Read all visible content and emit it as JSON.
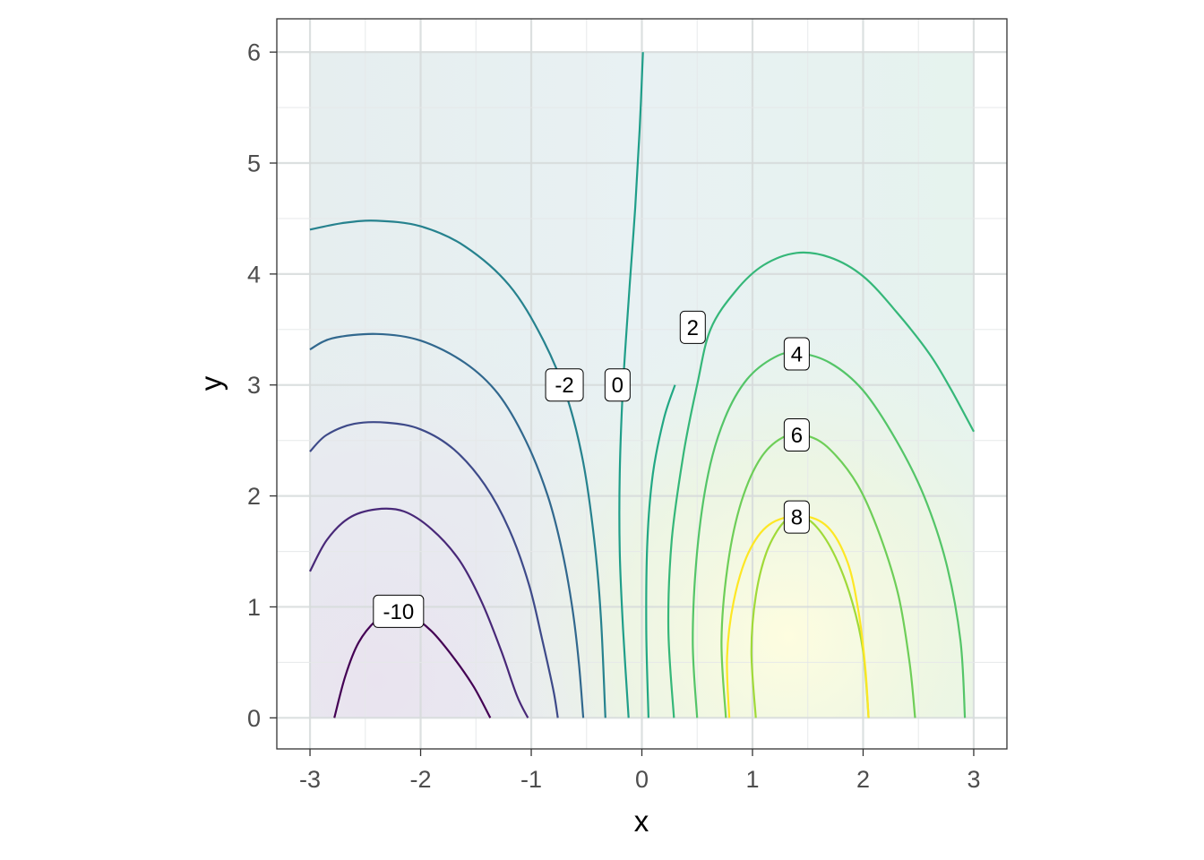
{
  "chart_data": {
    "type": "contour",
    "xlabel": "x",
    "ylabel": "y",
    "xlim": [
      -3.3,
      3.3
    ],
    "ylim": [
      -0.28,
      6.3
    ],
    "x_ticks": [
      {
        "value": -3,
        "label": "-3"
      },
      {
        "value": -2,
        "label": "-2"
      },
      {
        "value": -1,
        "label": "-1"
      },
      {
        "value": 0,
        "label": "0"
      },
      {
        "value": 1,
        "label": "1"
      },
      {
        "value": 2,
        "label": "2"
      },
      {
        "value": 3,
        "label": "3"
      }
    ],
    "y_ticks": [
      {
        "value": 0,
        "label": "0"
      },
      {
        "value": 1,
        "label": "1"
      },
      {
        "value": 2,
        "label": "2"
      },
      {
        "value": 3,
        "label": "3"
      },
      {
        "value": 4,
        "label": "4"
      },
      {
        "value": 5,
        "label": "5"
      },
      {
        "value": 6,
        "label": "6"
      }
    ],
    "grid": true,
    "fill_region": {
      "x": [
        -3,
        3
      ],
      "y": [
        0,
        6
      ]
    },
    "contours": [
      {
        "level": -10,
        "color": "#440154",
        "label": "-10",
        "label_pos": [
          -2.2,
          0.96
        ],
        "points": [
          [
            -2.78,
            0
          ],
          [
            -2.68,
            0.38
          ],
          [
            -2.56,
            0.68
          ],
          [
            -2.4,
            0.88
          ],
          [
            -2.25,
            0.96
          ],
          [
            -2.1,
            0.93
          ],
          [
            -1.9,
            0.78
          ],
          [
            -1.7,
            0.54
          ],
          [
            -1.52,
            0.28
          ],
          [
            -1.37,
            0
          ]
        ]
      },
      {
        "level": -9,
        "color": "#482878",
        "points": [
          [
            -3,
            1.32
          ],
          [
            -2.85,
            1.6
          ],
          [
            -2.65,
            1.8
          ],
          [
            -2.4,
            1.88
          ],
          [
            -2.15,
            1.86
          ],
          [
            -1.9,
            1.7
          ],
          [
            -1.65,
            1.42
          ],
          [
            -1.45,
            1.05
          ],
          [
            -1.27,
            0.6
          ],
          [
            -1.13,
            0.2
          ],
          [
            -1.03,
            0
          ]
        ]
      },
      {
        "level": -8,
        "color": "#3e4a89",
        "points": [
          [
            -3,
            2.4
          ],
          [
            -2.85,
            2.55
          ],
          [
            -2.6,
            2.65
          ],
          [
            -2.3,
            2.66
          ],
          [
            -2.0,
            2.6
          ],
          [
            -1.7,
            2.42
          ],
          [
            -1.42,
            2.1
          ],
          [
            -1.2,
            1.7
          ],
          [
            -1.02,
            1.2
          ],
          [
            -0.9,
            0.7
          ],
          [
            -0.8,
            0.25
          ],
          [
            -0.76,
            0
          ]
        ]
      },
      {
        "level": -7,
        "color": "#31688e",
        "points": [
          [
            -3,
            3.32
          ],
          [
            -2.8,
            3.42
          ],
          [
            -2.4,
            3.46
          ],
          [
            -2.0,
            3.4
          ],
          [
            -1.6,
            3.2
          ],
          [
            -1.3,
            2.92
          ],
          [
            -1.05,
            2.5
          ],
          [
            -0.85,
            2.0
          ],
          [
            -0.72,
            1.5
          ],
          [
            -0.63,
            1.0
          ],
          [
            -0.57,
            0.5
          ],
          [
            -0.53,
            0
          ]
        ]
      },
      {
        "level": -2,
        "color": "#26828e",
        "label": "-2",
        "label_pos": [
          -0.7,
          3.0
        ],
        "points": [
          [
            -3,
            4.4
          ],
          [
            -2.7,
            4.46
          ],
          [
            -2.4,
            4.48
          ],
          [
            -2.0,
            4.43
          ],
          [
            -1.6,
            4.25
          ],
          [
            -1.2,
            3.9
          ],
          [
            -0.9,
            3.42
          ],
          [
            -0.68,
            2.9
          ],
          [
            -0.53,
            2.3
          ],
          [
            -0.43,
            1.6
          ],
          [
            -0.37,
            0.9
          ],
          [
            -0.33,
            0
          ]
        ]
      },
      {
        "level": 0,
        "color": "#1f9e89",
        "label": "0",
        "label_pos": [
          -0.22,
          3.0
        ],
        "points": [
          [
            0.01,
            6.0
          ],
          [
            -0.02,
            5.3
          ],
          [
            -0.06,
            4.6
          ],
          [
            -0.11,
            3.9
          ],
          [
            -0.17,
            3.0
          ],
          [
            -0.2,
            2.2
          ],
          [
            -0.2,
            1.5
          ],
          [
            -0.17,
            0.8
          ],
          [
            -0.12,
            0
          ]
        ]
      },
      {
        "level": 1,
        "color": "#22a884",
        "points": [
          [
            0.06,
            0
          ],
          [
            0.04,
            0.8
          ],
          [
            0.05,
            1.6
          ],
          [
            0.1,
            2.2
          ],
          [
            0.2,
            2.7
          ],
          [
            0.3,
            3.0
          ]
        ]
      },
      {
        "level": 2,
        "color": "#35b779",
        "label": "2",
        "label_pos": [
          0.46,
          3.52
        ],
        "points": [
          [
            0.29,
            0
          ],
          [
            0.24,
            0.8
          ],
          [
            0.27,
            1.6
          ],
          [
            0.38,
            2.4
          ],
          [
            0.5,
            3.0
          ],
          [
            0.62,
            3.5
          ],
          [
            0.85,
            3.85
          ],
          [
            1.1,
            4.08
          ],
          [
            1.4,
            4.19
          ],
          [
            1.7,
            4.15
          ],
          [
            2.0,
            3.98
          ],
          [
            2.3,
            3.66
          ],
          [
            2.6,
            3.28
          ],
          [
            2.8,
            2.95
          ],
          [
            3.0,
            2.58
          ]
        ]
      },
      {
        "level": 3,
        "color": "#54c568",
        "points": [
          [
            0.5,
            0
          ],
          [
            0.46,
            0.7
          ],
          [
            0.5,
            1.5
          ],
          [
            0.6,
            2.2
          ],
          [
            0.75,
            2.7
          ],
          [
            0.95,
            3.05
          ],
          [
            1.2,
            3.25
          ],
          [
            1.4,
            3.29
          ],
          [
            1.7,
            3.2
          ],
          [
            2.0,
            2.95
          ],
          [
            2.3,
            2.5
          ],
          [
            2.55,
            2.0
          ],
          [
            2.75,
            1.4
          ],
          [
            2.88,
            0.7
          ],
          [
            2.92,
            0
          ]
        ]
      },
      {
        "level": 4,
        "color": "#6ece58",
        "label": "4",
        "label_pos": [
          1.4,
          3.28
        ],
        "points": [
          [
            0.76,
            0
          ],
          [
            0.72,
            0.7
          ],
          [
            0.78,
            1.4
          ],
          [
            0.9,
            1.95
          ],
          [
            1.08,
            2.35
          ],
          [
            1.3,
            2.54
          ],
          [
            1.5,
            2.54
          ],
          [
            1.7,
            2.42
          ],
          [
            1.95,
            2.1
          ],
          [
            2.15,
            1.65
          ],
          [
            2.32,
            1.1
          ],
          [
            2.42,
            0.5
          ],
          [
            2.47,
            0
          ]
        ]
      },
      {
        "level": 6,
        "color": "#a0da39",
        "label": "6",
        "label_pos": [
          1.4,
          2.55
        ],
        "points": [
          [
            1.03,
            0
          ],
          [
            0.99,
            0.6
          ],
          [
            1.03,
            1.1
          ],
          [
            1.13,
            1.5
          ],
          [
            1.28,
            1.76
          ],
          [
            1.42,
            1.82
          ],
          [
            1.58,
            1.72
          ],
          [
            1.75,
            1.45
          ],
          [
            1.9,
            1.05
          ],
          [
            2.0,
            0.6
          ],
          [
            2.05,
            0
          ]
        ]
      },
      {
        "level": 8,
        "color": "#fde725",
        "label": "8",
        "label_pos": [
          1.4,
          1.81
        ],
        "points": [
          [
            1.4,
            1.82
          ]
        ]
      }
    ]
  }
}
